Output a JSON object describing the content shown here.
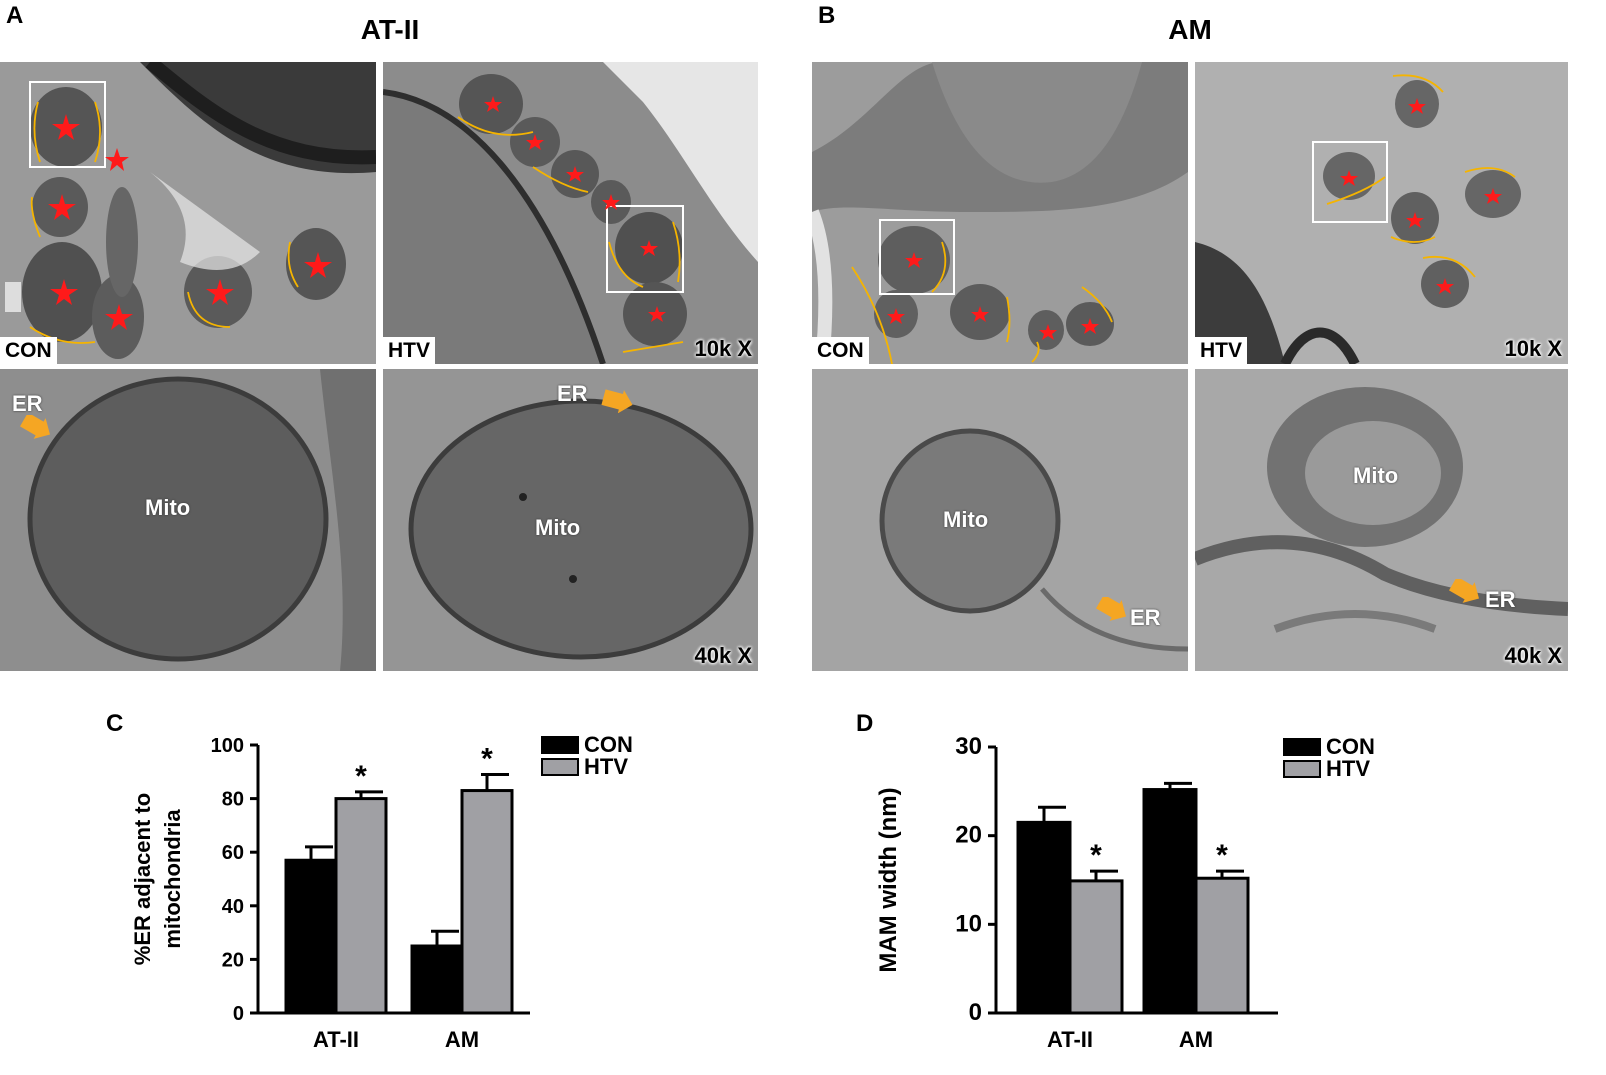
{
  "panels": {
    "a": {
      "letter": "A",
      "title": "AT-II"
    },
    "b": {
      "letter": "B",
      "title": "AM"
    },
    "c": {
      "letter": "C"
    },
    "d": {
      "letter": "D"
    }
  },
  "images": {
    "tag_con": "CON",
    "tag_htv": "HTV",
    "mag_low": "10k X",
    "mag_high": "40k X",
    "label_mito": "Mito",
    "label_er": "ER"
  },
  "colors": {
    "con": "#000000",
    "htv": "#a0a0a4",
    "annotation_line": "#f5b400",
    "arrow": "#f5a623",
    "star": "#ff1a1a"
  },
  "chart_data": [
    {
      "type": "bar",
      "panel": "C",
      "categories": [
        "AT-II",
        "AM"
      ],
      "ylabel": "%ER adjacent to\nmitochondria",
      "ylim": [
        0,
        100
      ],
      "yticks": [
        0,
        20,
        40,
        60,
        80,
        100
      ],
      "legend_position": "top-right",
      "series": [
        {
          "name": "CON",
          "values": [
            57,
            25
          ],
          "errors": [
            5,
            5.5
          ]
        },
        {
          "name": "HTV",
          "values": [
            80,
            83
          ],
          "errors": [
            2.5,
            6
          ]
        }
      ],
      "significance": [
        {
          "category": "AT-II",
          "series": "HTV",
          "mark": "*"
        },
        {
          "category": "AM",
          "series": "HTV",
          "mark": "*"
        }
      ]
    },
    {
      "type": "bar",
      "panel": "D",
      "categories": [
        "AT-II",
        "AM"
      ],
      "ylabel": "MAM width (nm)",
      "ylim": [
        0,
        30
      ],
      "yticks": [
        0,
        10,
        20,
        30
      ],
      "legend_position": "top-right",
      "series": [
        {
          "name": "CON",
          "values": [
            21.5,
            25.2
          ],
          "errors": [
            1.7,
            0.7
          ]
        },
        {
          "name": "HTV",
          "values": [
            14.9,
            15.2
          ],
          "errors": [
            1.1,
            0.8
          ]
        }
      ],
      "significance": [
        {
          "category": "AT-II",
          "series": "HTV",
          "mark": "*"
        },
        {
          "category": "AM",
          "series": "HTV",
          "mark": "*"
        }
      ]
    }
  ]
}
